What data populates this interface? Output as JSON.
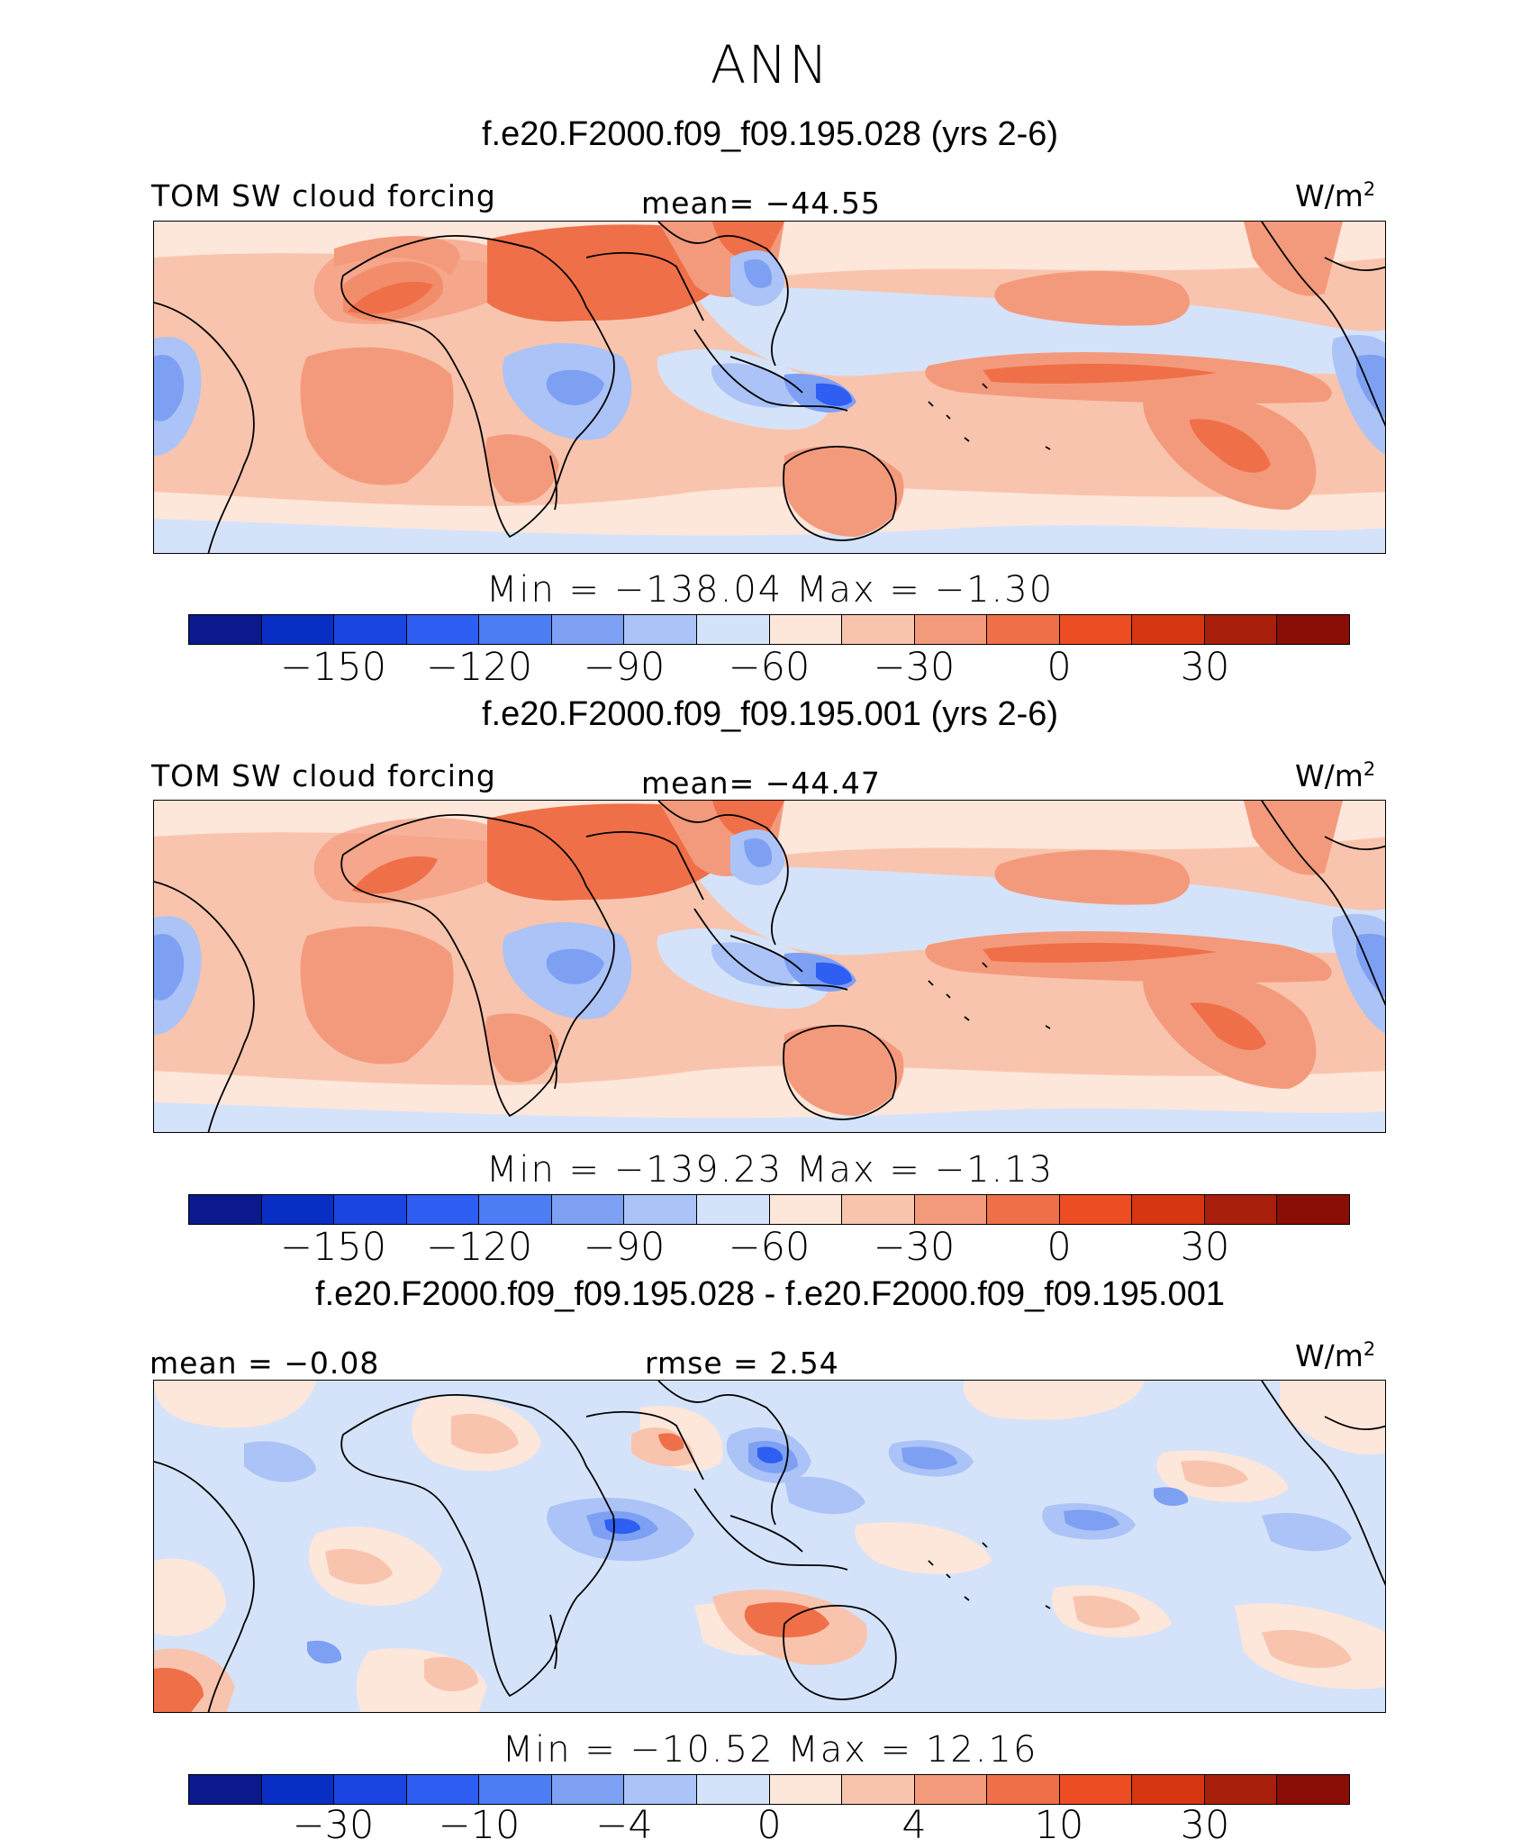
{
  "title": "ANN",
  "palette_main": [
    "#0a1a8c",
    "#0a2fc4",
    "#1a45e0",
    "#2e5ff2",
    "#4d7df4",
    "#7da0f3",
    "#abc3f6",
    "#d5e3fa",
    "#fde6da",
    "#f9c4ad",
    "#f49a7c",
    "#ef6f48",
    "#ec4d22",
    "#d63610",
    "#a8200b",
    "#8a0d06"
  ],
  "panels": [
    {
      "title": "f.e20.F2000.f09_f09.195.028 (yrs 2-6)",
      "variable": "TOM SW cloud forcing",
      "mean": "mean= −44.55",
      "units": "W/m",
      "units_sup": "2",
      "minmax": "Min  =  −138.04  Max  =    −1.30",
      "ticks": [
        "−150",
        "−120",
        "−90",
        "−60",
        "−30",
        "0",
        "30"
      ]
    },
    {
      "title": "f.e20.F2000.f09_f09.195.001 (yrs 2-6)",
      "variable": "TOM SW cloud forcing",
      "mean": "mean= −44.47",
      "units": "W/m",
      "units_sup": "2",
      "minmax": "Min  =  −139.23  Max  =    −1.13",
      "ticks": [
        "−150",
        "−120",
        "−90",
        "−60",
        "−30",
        "0",
        "30"
      ]
    },
    {
      "title": "f.e20.F2000.f09_f09.195.028 - f.e20.F2000.f09_f09.195.001",
      "mean": "mean  =   −0.08",
      "rmse": "rmse  =    2.54",
      "units": "W/m",
      "units_sup": "2",
      "minmax": "Min  =  −10.52  Max  =   12.16",
      "ticks": [
        "−30",
        "−10",
        "−4",
        "0",
        "4",
        "10",
        "30"
      ]
    }
  ]
}
